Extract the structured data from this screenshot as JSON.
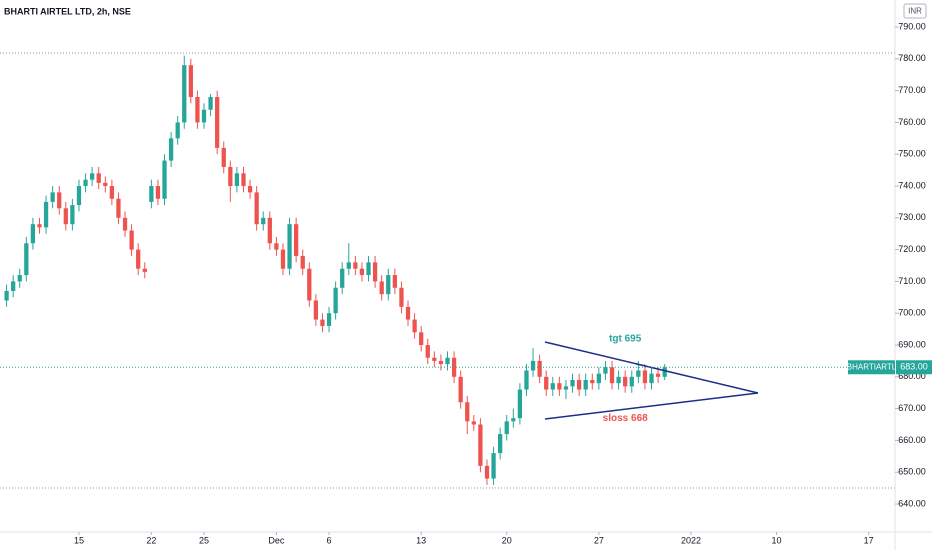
{
  "chart_data": {
    "type": "candlestick",
    "title": "BHARTI AIRTEL LTD, 2h, NSE",
    "currency": "INR",
    "symbol": "BHARTIARTL",
    "last_price": {
      "value": 683,
      "label": "683.00"
    },
    "up_color": "#26a69a",
    "down_color": "#ef5350",
    "annotations": [
      {
        "text": "tgt 695",
        "color": "#26a69a",
        "x": 94,
        "y": 692
      },
      {
        "text": "sloss 668",
        "color": "#ef5350",
        "x": 94,
        "y": 667
      }
    ],
    "open": [
      704,
      707,
      710,
      712,
      722,
      728,
      727,
      735,
      738,
      733,
      728,
      734,
      740,
      742,
      744,
      741,
      740,
      736,
      730,
      726,
      720,
      714,
      735,
      740,
      736,
      748,
      755,
      760,
      778,
      768,
      760,
      764,
      768,
      752,
      746,
      740,
      744,
      740,
      738,
      728,
      730,
      722,
      720,
      714,
      728,
      718,
      714,
      704,
      698,
      696,
      700,
      708,
      714,
      716,
      714,
      712,
      716,
      710,
      706,
      712,
      708,
      702,
      698,
      694,
      690,
      686,
      685,
      684,
      686,
      680,
      672,
      666,
      665,
      652,
      648,
      656,
      662,
      666,
      667,
      676,
      682,
      685,
      680,
      676,
      678,
      676,
      677,
      679,
      676,
      679,
      678,
      681,
      683,
      678,
      680,
      677,
      680,
      682,
      678,
      681,
      680
    ],
    "high": [
      709,
      712,
      714,
      724,
      730,
      730,
      737,
      740,
      740,
      735,
      736,
      742,
      744,
      746,
      746,
      743,
      742,
      738,
      732,
      728,
      722,
      716,
      742,
      742,
      750,
      757,
      762,
      781,
      780,
      770,
      766,
      769,
      770,
      754,
      748,
      746,
      746,
      742,
      740,
      732,
      732,
      724,
      722,
      730,
      730,
      720,
      716,
      706,
      700,
      702,
      710,
      716,
      722,
      718,
      716,
      718,
      718,
      712,
      714,
      714,
      710,
      704,
      700,
      696,
      692,
      688,
      687,
      688,
      688,
      682,
      674,
      668,
      667,
      654,
      658,
      664,
      668,
      670,
      678,
      684,
      689,
      687,
      682,
      680,
      680,
      679,
      681,
      681,
      681,
      681,
      683,
      685,
      685,
      682,
      682,
      682,
      685,
      684,
      683,
      683,
      684
    ],
    "low": [
      702,
      705,
      708,
      710,
      720,
      725,
      725,
      733,
      731,
      726,
      726,
      732,
      738,
      740,
      739,
      738,
      734,
      728,
      724,
      718,
      712,
      711,
      733,
      734,
      734,
      746,
      753,
      758,
      766,
      758,
      758,
      762,
      750,
      744,
      735,
      738,
      738,
      736,
      726,
      726,
      720,
      718,
      712,
      712,
      716,
      712,
      702,
      696,
      694,
      694,
      698,
      706,
      712,
      712,
      710,
      710,
      708,
      704,
      704,
      706,
      700,
      696,
      692,
      688,
      684,
      683,
      682,
      682,
      678,
      670,
      662,
      663,
      650,
      646,
      646,
      654,
      660,
      664,
      665,
      674,
      680,
      678,
      674,
      674,
      674,
      673,
      675,
      674,
      674,
      676,
      676,
      679,
      676,
      676,
      675,
      675,
      678,
      676,
      676,
      678,
      679
    ],
    "close": [
      707,
      710,
      712,
      722,
      728,
      727,
      735,
      738,
      733,
      728,
      734,
      740,
      742,
      744,
      741,
      740,
      736,
      730,
      726,
      720,
      714,
      713,
      740,
      736,
      748,
      755,
      760,
      778,
      768,
      760,
      764,
      768,
      752,
      746,
      740,
      744,
      740,
      738,
      728,
      730,
      722,
      720,
      714,
      728,
      718,
      714,
      704,
      698,
      696,
      700,
      708,
      714,
      716,
      714,
      712,
      716,
      710,
      706,
      712,
      708,
      702,
      698,
      694,
      690,
      686,
      685,
      684,
      686,
      680,
      672,
      666,
      665,
      652,
      648,
      656,
      662,
      666,
      667,
      676,
      682,
      685,
      680,
      676,
      678,
      676,
      677,
      679,
      676,
      679,
      678,
      681,
      683,
      678,
      680,
      677,
      680,
      682,
      678,
      681,
      680,
      683
    ],
    "xlim": [
      -1,
      135
    ],
    "xticks": [
      {
        "value": 11,
        "label": "15"
      },
      {
        "value": 22,
        "label": "22"
      },
      {
        "value": 30,
        "label": "25"
      },
      {
        "value": 41,
        "label": "Dec"
      },
      {
        "value": 49,
        "label": "6"
      },
      {
        "value": 63,
        "label": "13"
      },
      {
        "value": 76,
        "label": "20"
      },
      {
        "value": 90,
        "label": "27"
      },
      {
        "value": 104,
        "label": "2022"
      },
      {
        "value": 117,
        "label": "10"
      },
      {
        "value": 131,
        "label": "17"
      }
    ],
    "ylim": [
      631.2,
      798.5
    ],
    "yticks": [
      {
        "value": 640,
        "label": "640.00"
      },
      {
        "value": 650,
        "label": "650.00"
      },
      {
        "value": 660,
        "label": "660.00"
      },
      {
        "value": 670,
        "label": "670.00"
      },
      {
        "value": 680,
        "label": "680.00"
      },
      {
        "value": 690,
        "label": "690.00"
      },
      {
        "value": 700,
        "label": "700.00"
      },
      {
        "value": 710,
        "label": "710.00"
      },
      {
        "value": 720,
        "label": "720.00"
      },
      {
        "value": 730,
        "label": "730.00"
      },
      {
        "value": 740,
        "label": "740.00"
      },
      {
        "value": 750,
        "label": "750.00"
      },
      {
        "value": 760,
        "label": "760.00"
      },
      {
        "value": 770,
        "label": "770.00"
      },
      {
        "value": 780,
        "label": "780.00"
      },
      {
        "value": 790,
        "label": "790.00"
      }
    ]
  }
}
